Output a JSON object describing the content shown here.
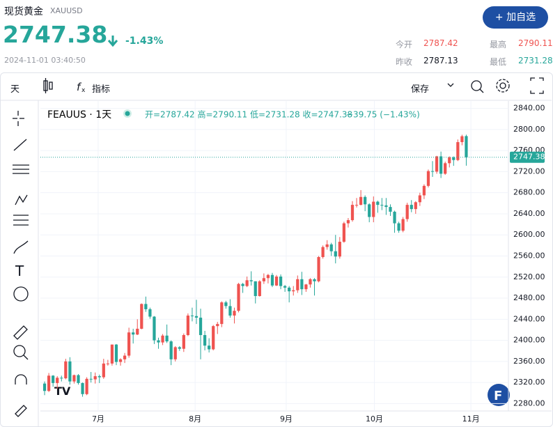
{
  "header": {
    "name": "现货黄金",
    "symbol": "XAUUSD",
    "price": "2747.38",
    "change": "-1.43%",
    "time": "2024-11-01 03:40:50",
    "button": "+ 加自选",
    "stats": [
      [
        "今开",
        "2787.42"
      ],
      [
        "最高",
        "2790.11"
      ],
      [
        "昨收",
        "2787.13"
      ],
      [
        "最低",
        "2731.28"
      ]
    ]
  },
  "toolbar": {
    "interval": "天",
    "indicators": "指标",
    "save": "保存"
  },
  "chart_data": {
    "type": "candlestick",
    "legend_symbol": "FEAUUS · 1天",
    "legend_ohlc": "开=2787.42 高=2790.11 低=2731.28 收=2747.38",
    "legend_change": "−39.75 (−1.43%)",
    "up_color": "#ef5350",
    "down_color": "#26a69a",
    "grid": true,
    "last_price": 2747.38,
    "ylim": [
      2266,
      2854
    ],
    "yticks": [
      {
        "value": 2280,
        "label": "2280.00"
      },
      {
        "value": 2320,
        "label": "2320.00"
      },
      {
        "value": 2360,
        "label": "2360.00"
      },
      {
        "value": 2400,
        "label": "2400.00"
      },
      {
        "value": 2440,
        "label": "2440.00"
      },
      {
        "value": 2480,
        "label": "2480.00"
      },
      {
        "value": 2520,
        "label": "2520.00"
      },
      {
        "value": 2560,
        "label": "2560.00"
      },
      {
        "value": 2600,
        "label": "2600.00"
      },
      {
        "value": 2640,
        "label": "2640.00"
      },
      {
        "value": 2680,
        "label": "2680.00"
      },
      {
        "value": 2720,
        "label": "2720.00"
      },
      {
        "value": 2760,
        "label": "2760.00"
      },
      {
        "value": 2800,
        "label": "2800.00"
      },
      {
        "value": 2840,
        "label": "2840.00"
      }
    ],
    "xlim": [
      -1,
      110
    ],
    "xticks": [
      {
        "value": 12.7,
        "label": "7月"
      },
      {
        "value": 35.7,
        "label": "8月"
      },
      {
        "value": 57.3,
        "label": "9月"
      },
      {
        "value": 78.2,
        "label": "10月"
      },
      {
        "value": 101.1,
        "label": "11月"
      }
    ],
    "candles": [
      [
        2318,
        2322,
        2296,
        2304
      ],
      [
        2304,
        2338,
        2302,
        2333
      ],
      [
        2333,
        2334,
        2312,
        2319
      ],
      [
        2319,
        2332,
        2308,
        2329
      ],
      [
        2329,
        2333,
        2322,
        2328
      ],
      [
        2328,
        2365,
        2326,
        2360
      ],
      [
        2360,
        2368,
        2316,
        2322
      ],
      [
        2322,
        2335,
        2318,
        2334
      ],
      [
        2334,
        2336,
        2316,
        2319
      ],
      [
        2319,
        2320,
        2293,
        2298
      ],
      [
        2298,
        2330,
        2296,
        2327
      ],
      [
        2327,
        2340,
        2320,
        2326
      ],
      [
        2326,
        2339,
        2318,
        2332
      ],
      [
        2332,
        2335,
        2319,
        2330
      ],
      [
        2330,
        2365,
        2327,
        2356
      ],
      [
        2356,
        2363,
        2352,
        2356
      ],
      [
        2356,
        2392,
        2352,
        2392
      ],
      [
        2392,
        2393,
        2353,
        2359
      ],
      [
        2359,
        2366,
        2352,
        2364
      ],
      [
        2364,
        2376,
        2357,
        2371
      ],
      [
        2371,
        2424,
        2367,
        2415
      ],
      [
        2415,
        2422,
        2394,
        2411
      ],
      [
        2411,
        2440,
        2410,
        2422
      ],
      [
        2422,
        2470,
        2421,
        2469
      ],
      [
        2469,
        2483,
        2454,
        2459
      ],
      [
        2459,
        2462,
        2441,
        2445
      ],
      [
        2445,
        2446,
        2393,
        2400
      ],
      [
        2400,
        2405,
        2384,
        2396
      ],
      [
        2396,
        2412,
        2391,
        2409
      ],
      [
        2409,
        2430,
        2395,
        2398
      ],
      [
        2398,
        2400,
        2353,
        2364
      ],
      [
        2364,
        2389,
        2360,
        2387
      ],
      [
        2387,
        2389,
        2380,
        2384
      ],
      [
        2384,
        2413,
        2378,
        2410
      ],
      [
        2410,
        2451,
        2408,
        2447
      ],
      [
        2447,
        2462,
        2436,
        2446
      ],
      [
        2446,
        2477,
        2431,
        2443
      ],
      [
        2443,
        2460,
        2364,
        2410
      ],
      [
        2410,
        2418,
        2381,
        2390
      ],
      [
        2390,
        2404,
        2377,
        2383
      ],
      [
        2383,
        2429,
        2381,
        2427
      ],
      [
        2427,
        2435,
        2412,
        2431
      ],
      [
        2431,
        2474,
        2425,
        2472
      ],
      [
        2472,
        2475,
        2460,
        2465
      ],
      [
        2465,
        2478,
        2443,
        2447
      ],
      [
        2447,
        2462,
        2432,
        2456
      ],
      [
        2456,
        2509,
        2453,
        2507
      ],
      [
        2507,
        2509,
        2490,
        2503
      ],
      [
        2503,
        2521,
        2501,
        2514
      ],
      [
        2514,
        2531,
        2504,
        2512
      ],
      [
        2512,
        2512,
        2470,
        2484
      ],
      [
        2484,
        2514,
        2483,
        2512
      ],
      [
        2512,
        2527,
        2507,
        2518
      ],
      [
        2518,
        2526,
        2508,
        2524
      ],
      [
        2524,
        2528,
        2501,
        2504
      ],
      [
        2504,
        2524,
        2503,
        2521
      ],
      [
        2521,
        2525,
        2497,
        2503
      ],
      [
        2503,
        2505,
        2492,
        2500
      ],
      [
        2500,
        2503,
        2472,
        2493
      ],
      [
        2493,
        2503,
        2485,
        2495
      ],
      [
        2495,
        2523,
        2490,
        2516
      ],
      [
        2516,
        2530,
        2486,
        2497
      ],
      [
        2497,
        2507,
        2492,
        2506
      ],
      [
        2506,
        2518,
        2500,
        2516
      ],
      [
        2516,
        2518,
        2485,
        2512
      ],
      [
        2512,
        2560,
        2510,
        2558
      ],
      [
        2558,
        2580,
        2555,
        2577
      ],
      [
        2577,
        2590,
        2572,
        2582
      ],
      [
        2582,
        2585,
        2560,
        2569
      ],
      [
        2569,
        2600,
        2546,
        2559
      ],
      [
        2559,
        2596,
        2555,
        2587
      ],
      [
        2587,
        2625,
        2585,
        2622
      ],
      [
        2622,
        2632,
        2614,
        2628
      ],
      [
        2628,
        2664,
        2625,
        2657
      ],
      [
        2657,
        2670,
        2652,
        2657
      ],
      [
        2657,
        2685,
        2656,
        2672
      ],
      [
        2672,
        2675,
        2645,
        2658
      ],
      [
        2658,
        2660,
        2624,
        2634
      ],
      [
        2634,
        2673,
        2624,
        2663
      ],
      [
        2663,
        2665,
        2642,
        2657
      ],
      [
        2657,
        2670,
        2647,
        2656
      ],
      [
        2656,
        2670,
        2638,
        2653
      ],
      [
        2653,
        2658,
        2636,
        2644
      ],
      [
        2644,
        2646,
        2604,
        2622
      ],
      [
        2622,
        2625,
        2604,
        2608
      ],
      [
        2608,
        2634,
        2605,
        2630
      ],
      [
        2630,
        2661,
        2625,
        2657
      ],
      [
        2657,
        2666,
        2643,
        2649
      ],
      [
        2649,
        2664,
        2640,
        2662
      ],
      [
        2662,
        2680,
        2655,
        2675
      ],
      [
        2675,
        2696,
        2668,
        2693
      ],
      [
        2693,
        2724,
        2690,
        2721
      ],
      [
        2721,
        2740,
        2710,
        2720
      ],
      [
        2720,
        2750,
        2716,
        2749
      ],
      [
        2749,
        2758,
        2708,
        2716
      ],
      [
        2716,
        2739,
        2714,
        2736
      ],
      [
        2736,
        2749,
        2728,
        2747
      ],
      [
        2747,
        2749,
        2731,
        2742
      ],
      [
        2742,
        2781,
        2740,
        2776
      ],
      [
        2776,
        2790,
        2770,
        2787.13
      ],
      [
        2787.42,
        2790.11,
        2731.28,
        2747.38
      ]
    ]
  }
}
